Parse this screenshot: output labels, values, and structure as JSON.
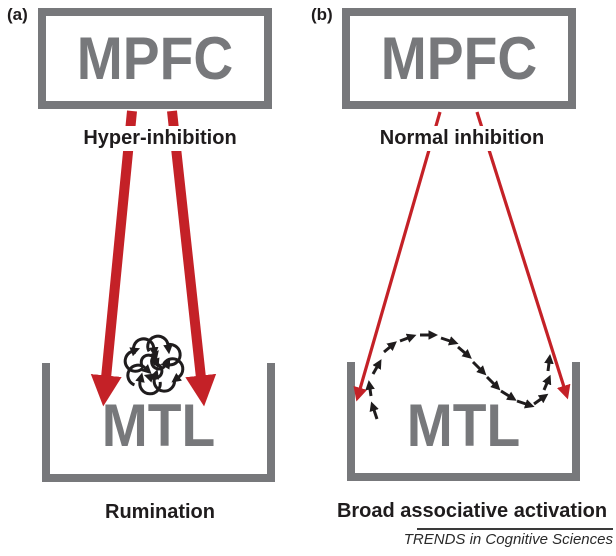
{
  "figure": {
    "journal_caption": "TRENDS in Cognitive Sciences",
    "colors": {
      "arrow_red": "#c42127",
      "region_gray": "#77787b",
      "text_black": "#1f1c1d"
    },
    "icons": {
      "rumination_cycle": "cluster of circular black arrows (looping cycle)",
      "associative_path": "dashed S-shaped path of small black arrows",
      "inhibition_arrow": "red downward arrow"
    }
  },
  "panels": {
    "a": {
      "tag": "(a)",
      "source_region": "MPFC",
      "pathway_label": "Hyper-inhibition",
      "target_region": "MTL",
      "caption": "Rumination"
    },
    "b": {
      "tag": "(b)",
      "source_region": "MPFC",
      "pathway_label": "Normal inhibition",
      "target_region": "MTL",
      "caption": "Broad associative activation"
    }
  }
}
